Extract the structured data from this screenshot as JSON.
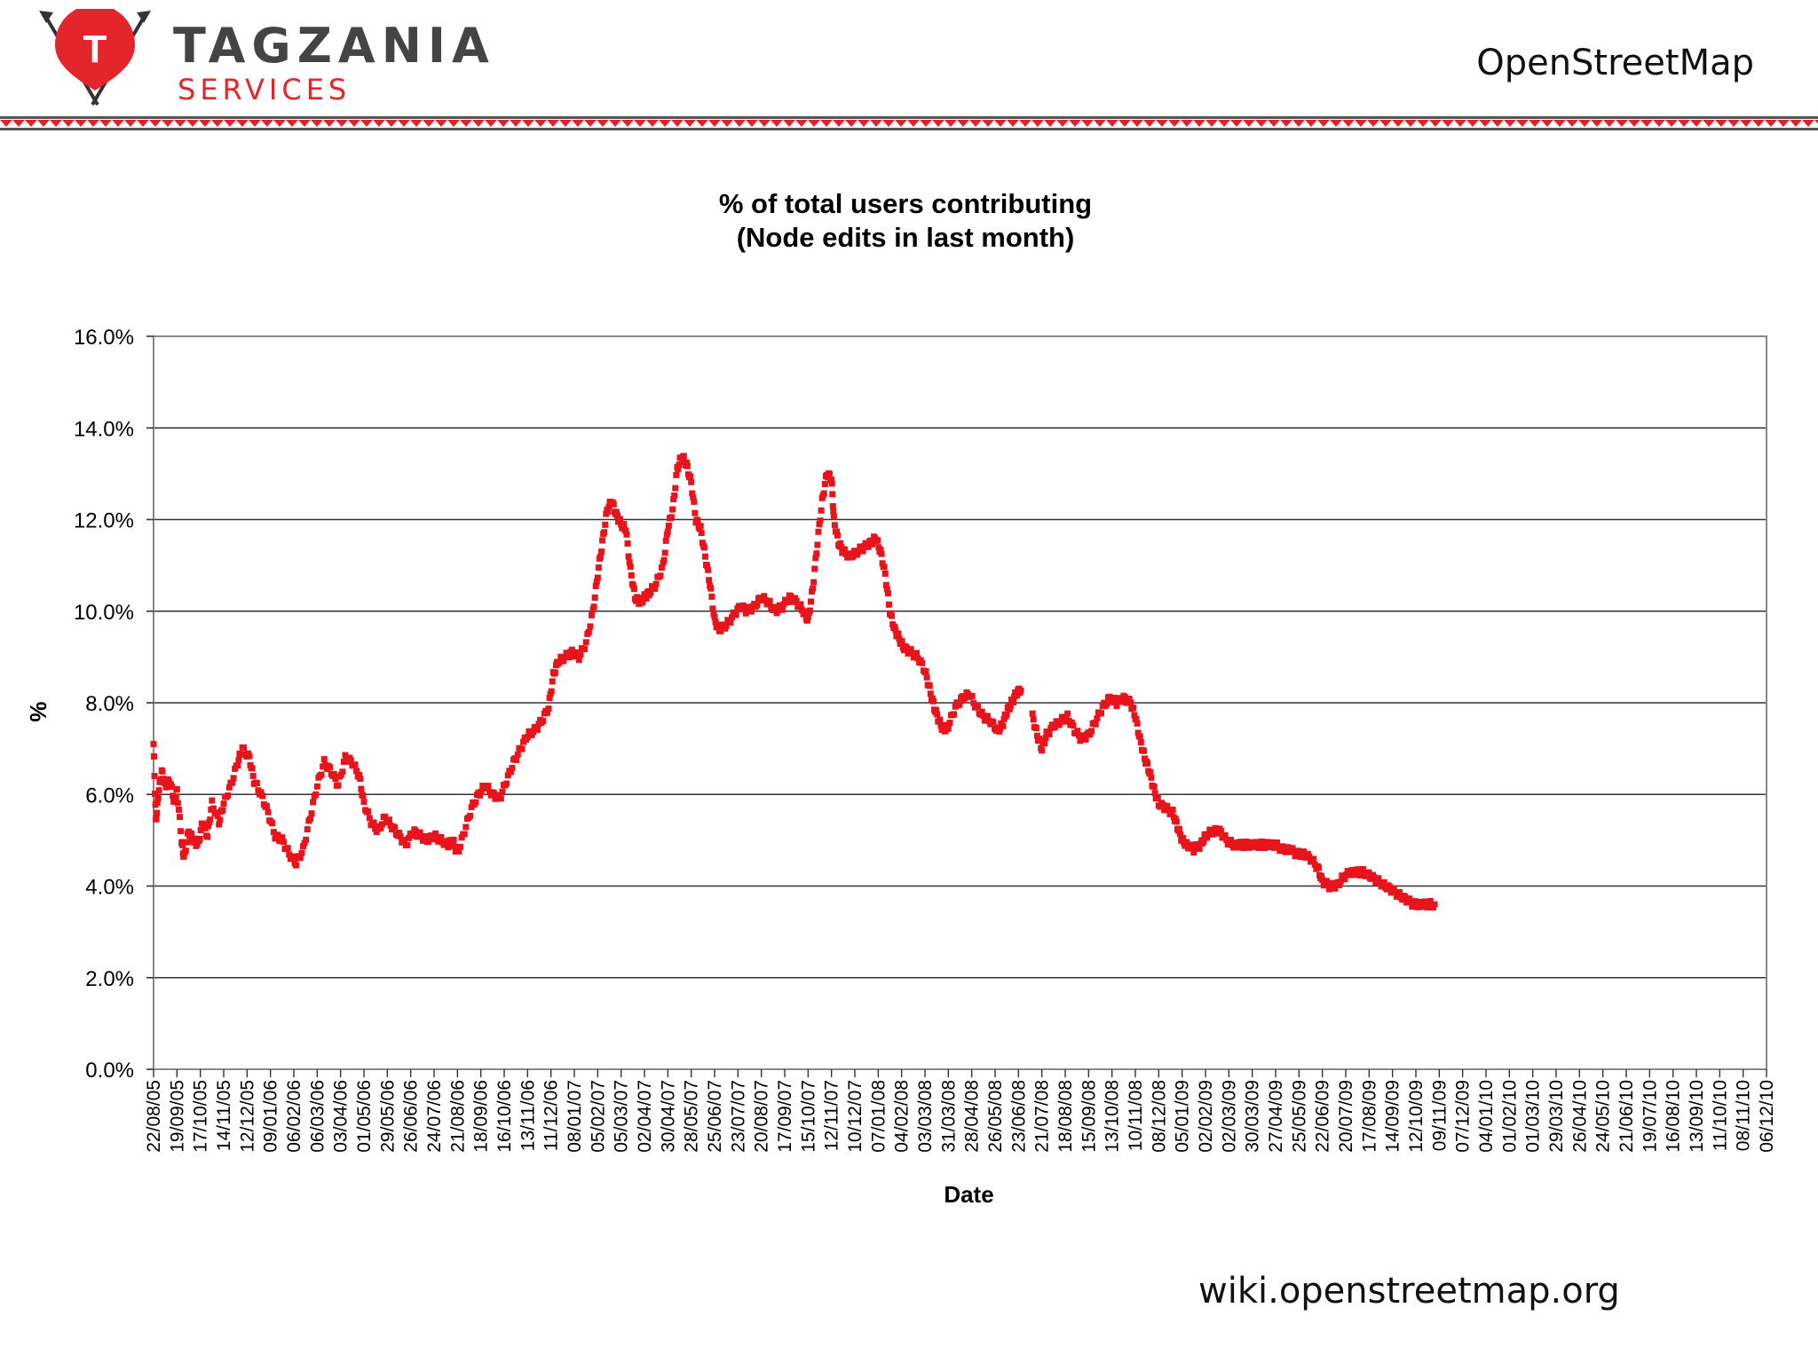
{
  "header": {
    "brand_name": "TAGZANIA",
    "brand_sub": "SERVICES",
    "logo_letter": "T",
    "source_title": "OpenStreetMap",
    "brand_color": "#e3262b"
  },
  "footer": {
    "url": "wiki.openstreetmap.org"
  },
  "chart_data": {
    "type": "scatter",
    "title": [
      "% of total users contributing",
      "(Node edits in last month)"
    ],
    "xlabel": "Date",
    "ylabel": "%",
    "ylim": [
      0,
      16
    ],
    "yticks": [
      "0.0%",
      "2.0%",
      "4.0%",
      "6.0%",
      "8.0%",
      "10.0%",
      "12.0%",
      "14.0%",
      "16.0%"
    ],
    "grid": true,
    "marker_color": "#e8141c",
    "categories": [
      "22/08/05",
      "19/09/05",
      "17/10/05",
      "14/11/05",
      "12/12/05",
      "09/01/06",
      "06/02/06",
      "06/03/06",
      "03/04/06",
      "01/05/06",
      "29/05/06",
      "26/06/06",
      "24/07/06",
      "21/08/06",
      "18/09/06",
      "16/10/06",
      "13/11/06",
      "11/12/06",
      "08/01/07",
      "05/02/07",
      "05/03/07",
      "02/04/07",
      "30/04/07",
      "28/05/07",
      "25/06/07",
      "23/07/07",
      "20/08/07",
      "17/09/07",
      "15/10/07",
      "12/11/07",
      "10/12/07",
      "07/01/08",
      "04/02/08",
      "03/03/08",
      "31/03/08",
      "28/04/08",
      "26/05/08",
      "23/06/08",
      "21/07/08",
      "18/08/08",
      "15/09/08",
      "13/10/08",
      "10/11/08",
      "08/12/08",
      "05/01/09",
      "02/02/09",
      "02/03/09",
      "30/03/09",
      "27/04/09",
      "25/05/09",
      "22/06/09",
      "20/07/09",
      "17/08/09",
      "14/09/09",
      "12/10/09",
      "09/11/09",
      "07/12/09",
      "04/01/10",
      "01/02/10",
      "01/03/10",
      "29/03/10",
      "26/04/10",
      "24/05/10",
      "21/06/10",
      "19/07/10",
      "16/08/10",
      "13/09/10",
      "11/10/10",
      "08/11/10",
      "06/12/10"
    ],
    "series": [
      {
        "name": "% of total users contributing",
        "points": [
          [
            0,
            7.1
          ],
          [
            0.1,
            5.4
          ],
          [
            0.2,
            6.0
          ],
          [
            0.35,
            6.5
          ],
          [
            0.5,
            6.2
          ],
          [
            0.7,
            6.3
          ],
          [
            0.9,
            5.8
          ],
          [
            1.0,
            6.1
          ],
          [
            1.2,
            5.0
          ],
          [
            1.3,
            4.6
          ],
          [
            1.5,
            5.2
          ],
          [
            1.7,
            5.0
          ],
          [
            1.9,
            4.9
          ],
          [
            2.1,
            5.4
          ],
          [
            2.3,
            5.1
          ],
          [
            2.5,
            5.8
          ],
          [
            2.8,
            5.4
          ],
          [
            3.0,
            5.8
          ],
          [
            3.3,
            6.2
          ],
          [
            3.6,
            6.7
          ],
          [
            3.8,
            7.0
          ],
          [
            4.1,
            6.8
          ],
          [
            4.3,
            6.3
          ],
          [
            4.6,
            6.0
          ],
          [
            4.9,
            5.6
          ],
          [
            5.2,
            5.1
          ],
          [
            5.5,
            5.0
          ],
          [
            5.8,
            4.7
          ],
          [
            6.1,
            4.5
          ],
          [
            6.4,
            4.8
          ],
          [
            6.7,
            5.5
          ],
          [
            7.0,
            6.2
          ],
          [
            7.3,
            6.7
          ],
          [
            7.6,
            6.5
          ],
          [
            7.9,
            6.2
          ],
          [
            8.2,
            6.8
          ],
          [
            8.5,
            6.7
          ],
          [
            8.8,
            6.4
          ],
          [
            9.0,
            5.8
          ],
          [
            9.3,
            5.4
          ],
          [
            9.6,
            5.2
          ],
          [
            9.9,
            5.5
          ],
          [
            10.2,
            5.3
          ],
          [
            10.5,
            5.1
          ],
          [
            10.8,
            4.9
          ],
          [
            11.1,
            5.2
          ],
          [
            11.4,
            5.1
          ],
          [
            11.7,
            5.0
          ],
          [
            12.0,
            5.1
          ],
          [
            12.3,
            5.0
          ],
          [
            12.6,
            4.9
          ],
          [
            12.8,
            5.0
          ],
          [
            13.0,
            4.7
          ],
          [
            13.3,
            5.2
          ],
          [
            13.6,
            5.7
          ],
          [
            13.9,
            6.0
          ],
          [
            14.2,
            6.2
          ],
          [
            14.5,
            6.0
          ],
          [
            14.8,
            5.9
          ],
          [
            15.1,
            6.3
          ],
          [
            15.4,
            6.7
          ],
          [
            15.7,
            7.0
          ],
          [
            16.0,
            7.3
          ],
          [
            16.3,
            7.4
          ],
          [
            16.6,
            7.6
          ],
          [
            16.9,
            7.9
          ],
          [
            17.1,
            8.6
          ],
          [
            17.3,
            8.9
          ],
          [
            17.6,
            9.0
          ],
          [
            17.9,
            9.1
          ],
          [
            18.2,
            9.0
          ],
          [
            18.5,
            9.3
          ],
          [
            18.8,
            10.0
          ],
          [
            19.0,
            10.8
          ],
          [
            19.2,
            11.5
          ],
          [
            19.4,
            12.2
          ],
          [
            19.6,
            12.4
          ],
          [
            19.8,
            12.1
          ],
          [
            20.0,
            11.9
          ],
          [
            20.2,
            11.8
          ],
          [
            20.4,
            10.9
          ],
          [
            20.6,
            10.3
          ],
          [
            20.8,
            10.2
          ],
          [
            21.0,
            10.3
          ],
          [
            21.2,
            10.4
          ],
          [
            21.5,
            10.6
          ],
          [
            21.8,
            11.0
          ],
          [
            22.0,
            11.8
          ],
          [
            22.2,
            12.2
          ],
          [
            22.4,
            13.1
          ],
          [
            22.6,
            13.4
          ],
          [
            22.8,
            13.2
          ],
          [
            23.0,
            12.8
          ],
          [
            23.2,
            12.0
          ],
          [
            23.4,
            11.8
          ],
          [
            23.6,
            11.2
          ],
          [
            23.8,
            10.6
          ],
          [
            24.0,
            9.8
          ],
          [
            24.2,
            9.6
          ],
          [
            24.5,
            9.7
          ],
          [
            24.8,
            9.9
          ],
          [
            25.1,
            10.1
          ],
          [
            25.4,
            10.0
          ],
          [
            25.7,
            10.1
          ],
          [
            26.0,
            10.3
          ],
          [
            26.3,
            10.2
          ],
          [
            26.6,
            10.0
          ],
          [
            26.9,
            10.1
          ],
          [
            27.2,
            10.3
          ],
          [
            27.5,
            10.2
          ],
          [
            27.8,
            10.0
          ],
          [
            28.0,
            9.8
          ],
          [
            28.2,
            10.5
          ],
          [
            28.4,
            11.5
          ],
          [
            28.6,
            12.4
          ],
          [
            28.8,
            13.0
          ],
          [
            29.0,
            12.9
          ],
          [
            29.1,
            12.0
          ],
          [
            29.3,
            11.5
          ],
          [
            29.5,
            11.3
          ],
          [
            29.8,
            11.2
          ],
          [
            30.1,
            11.3
          ],
          [
            30.4,
            11.4
          ],
          [
            30.7,
            11.5
          ],
          [
            30.9,
            11.6
          ],
          [
            31.1,
            11.3
          ],
          [
            31.3,
            10.8
          ],
          [
            31.5,
            10.0
          ],
          [
            31.7,
            9.6
          ],
          [
            31.9,
            9.4
          ],
          [
            32.1,
            9.2
          ],
          [
            32.4,
            9.1
          ],
          [
            32.7,
            9.0
          ],
          [
            33.0,
            8.7
          ],
          [
            33.2,
            8.3
          ],
          [
            33.4,
            7.9
          ],
          [
            33.6,
            7.6
          ],
          [
            33.8,
            7.4
          ],
          [
            34.0,
            7.5
          ],
          [
            34.3,
            7.9
          ],
          [
            34.6,
            8.1
          ],
          [
            34.9,
            8.2
          ],
          [
            35.2,
            7.9
          ],
          [
            35.5,
            7.7
          ],
          [
            35.8,
            7.6
          ],
          [
            36.1,
            7.4
          ],
          [
            36.3,
            7.5
          ],
          [
            36.5,
            7.8
          ],
          [
            36.7,
            8.0
          ],
          [
            36.9,
            8.2
          ],
          [
            37.1,
            8.3
          ],
          [
            37.6,
            7.7
          ],
          [
            37.8,
            7.3
          ],
          [
            38.0,
            7.0
          ],
          [
            38.2,
            7.3
          ],
          [
            38.5,
            7.5
          ],
          [
            38.8,
            7.6
          ],
          [
            39.1,
            7.7
          ],
          [
            39.4,
            7.4
          ],
          [
            39.7,
            7.2
          ],
          [
            40.0,
            7.3
          ],
          [
            40.3,
            7.6
          ],
          [
            40.6,
            7.9
          ],
          [
            40.9,
            8.1
          ],
          [
            41.2,
            8.0
          ],
          [
            41.5,
            8.1
          ],
          [
            41.8,
            8.0
          ],
          [
            42.0,
            7.7
          ],
          [
            42.2,
            7.2
          ],
          [
            42.4,
            6.8
          ],
          [
            42.6,
            6.5
          ],
          [
            42.8,
            6.1
          ],
          [
            43.0,
            5.8
          ],
          [
            43.3,
            5.7
          ],
          [
            43.6,
            5.6
          ],
          [
            43.8,
            5.3
          ],
          [
            44.0,
            5.0
          ],
          [
            44.2,
            4.9
          ],
          [
            44.5,
            4.8
          ],
          [
            44.8,
            4.9
          ],
          [
            45.0,
            5.1
          ],
          [
            45.3,
            5.2
          ],
          [
            45.6,
            5.2
          ],
          [
            45.9,
            5.0
          ],
          [
            46.2,
            4.9
          ],
          [
            46.5,
            4.9
          ],
          [
            46.8,
            4.9
          ],
          [
            47.1,
            4.9
          ],
          [
            47.4,
            4.9
          ],
          [
            47.7,
            4.9
          ],
          [
            48.0,
            4.9
          ],
          [
            48.3,
            4.8
          ],
          [
            48.6,
            4.8
          ],
          [
            48.9,
            4.7
          ],
          [
            49.2,
            4.7
          ],
          [
            49.5,
            4.6
          ],
          [
            49.8,
            4.4
          ],
          [
            50.0,
            4.1
          ],
          [
            50.3,
            4.0
          ],
          [
            50.6,
            4.0
          ],
          [
            50.9,
            4.2
          ],
          [
            51.2,
            4.3
          ],
          [
            51.5,
            4.3
          ],
          [
            51.8,
            4.3
          ],
          [
            52.1,
            4.2
          ],
          [
            52.4,
            4.1
          ],
          [
            52.7,
            4.0
          ],
          [
            53.0,
            3.9
          ],
          [
            53.3,
            3.8
          ],
          [
            53.6,
            3.7
          ],
          [
            53.9,
            3.6
          ],
          [
            54.2,
            3.6
          ],
          [
            54.5,
            3.6
          ],
          [
            54.8,
            3.6
          ]
        ]
      }
    ]
  }
}
